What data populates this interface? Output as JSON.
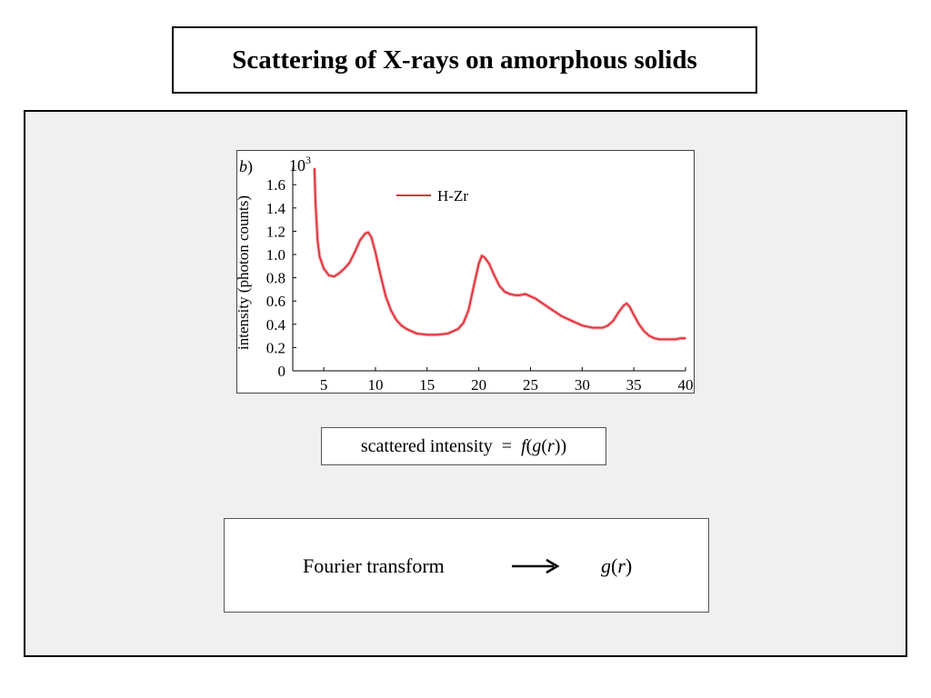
{
  "slide": {
    "title": "Scattering of X-rays on amorphous solids",
    "equation": {
      "lhs": "scattered intensity  =  ",
      "f": "f",
      "open1": "(",
      "g": "g",
      "open2": "(",
      "r": "r",
      "close": "))"
    },
    "fourier": {
      "label": "Fourier transform",
      "arrow": "⟶",
      "result_g": "g",
      "result_open": "(",
      "result_r": "r",
      "result_close": ")"
    }
  },
  "chart_data": {
    "type": "line",
    "panel_label_open": "",
    "panel_label": "b",
    "panel_label_close": ")",
    "ylabel": "intensity (photon counts)",
    "y_scale_label_base": "10",
    "y_scale_label_exp": "3",
    "xlim": [
      2,
      40
    ],
    "ylim": [
      0,
      1.75
    ],
    "x_ticks": [
      5,
      10,
      15,
      20,
      25,
      30,
      35,
      40
    ],
    "y_ticks": [
      "0",
      "0.2",
      "0.4",
      "0.6",
      "0.8",
      "1.0",
      "1.2",
      "1.4",
      "1.6"
    ],
    "series": [
      {
        "name": "H-Zr",
        "color": "#e0303a",
        "x": [
          4.1,
          4.2,
          4.4,
          4.6,
          5.0,
          5.5,
          6.0,
          6.5,
          7.0,
          7.5,
          8.0,
          8.5,
          9.0,
          9.3,
          9.6,
          10.0,
          10.5,
          11.0,
          11.5,
          12.0,
          12.5,
          13.0,
          13.5,
          14.0,
          15.0,
          16.0,
          17.0,
          18.0,
          18.5,
          19.0,
          19.5,
          20.0,
          20.3,
          20.6,
          21.0,
          21.5,
          22.0,
          22.5,
          23.0,
          23.5,
          24.0,
          24.5,
          25.0,
          25.5,
          26.0,
          27.0,
          28.0,
          29.0,
          30.0,
          31.0,
          32.0,
          32.5,
          33.0,
          33.5,
          34.0,
          34.3,
          34.6,
          35.0,
          35.5,
          36.0,
          36.5,
          37.0,
          37.5,
          38.0,
          38.5,
          39.0,
          39.5,
          40.0
        ],
        "y": [
          1.74,
          1.45,
          1.12,
          0.98,
          0.88,
          0.82,
          0.81,
          0.84,
          0.88,
          0.93,
          1.02,
          1.12,
          1.18,
          1.19,
          1.15,
          1.02,
          0.82,
          0.64,
          0.52,
          0.44,
          0.39,
          0.36,
          0.34,
          0.32,
          0.31,
          0.31,
          0.32,
          0.36,
          0.41,
          0.52,
          0.72,
          0.92,
          0.99,
          0.97,
          0.92,
          0.82,
          0.73,
          0.68,
          0.66,
          0.65,
          0.65,
          0.66,
          0.64,
          0.62,
          0.59,
          0.53,
          0.47,
          0.43,
          0.39,
          0.37,
          0.37,
          0.39,
          0.43,
          0.5,
          0.56,
          0.58,
          0.55,
          0.48,
          0.4,
          0.34,
          0.3,
          0.28,
          0.27,
          0.27,
          0.27,
          0.27,
          0.28,
          0.28
        ]
      }
    ]
  }
}
